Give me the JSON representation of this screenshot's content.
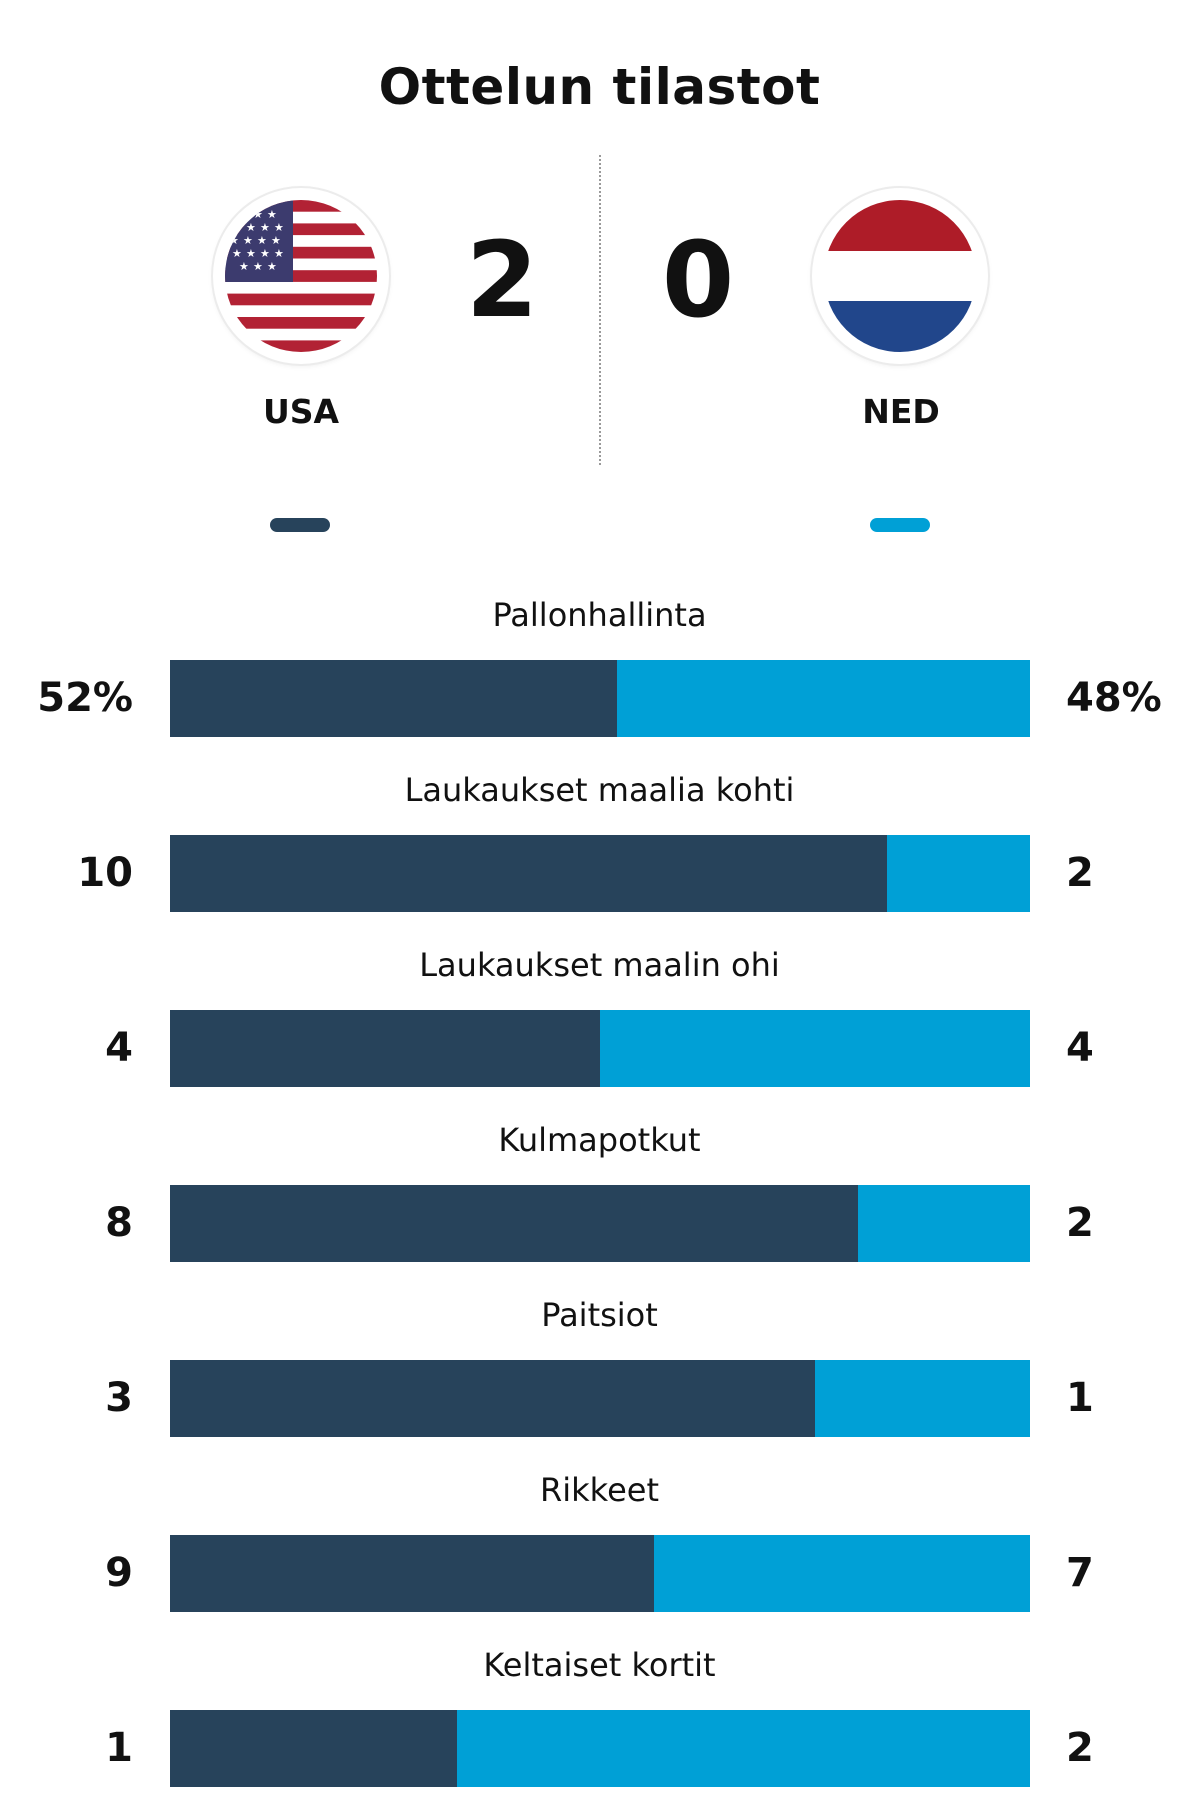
{
  "title": "Ottelun tilastot",
  "colors": {
    "home": "#27435b",
    "away": "#00a0d6"
  },
  "home": {
    "name": "USA",
    "score": "2",
    "flag": "us-flag-icon"
  },
  "away": {
    "name": "NED",
    "score": "0",
    "flag": "netherlands-flag-icon"
  },
  "chart_data": {
    "type": "bar",
    "orientation": "horizontal-stacked-share",
    "categories": [
      "Pallonhallinta",
      "Laukaukset maalia kohti",
      "Laukaukset maalin ohi",
      "Kulmapotkut",
      "Paitsiot",
      "Rikkeet",
      "Keltaiset kortit"
    ],
    "series": [
      {
        "name": "USA",
        "values": [
          52,
          10,
          4,
          8,
          3,
          9,
          1
        ]
      },
      {
        "name": "NED",
        "values": [
          48,
          2,
          4,
          2,
          1,
          7,
          2
        ]
      }
    ],
    "labels_home": [
      "52%",
      "10",
      "4",
      "8",
      "3",
      "9",
      "1"
    ],
    "labels_away": [
      "48%",
      "2",
      "4",
      "2",
      "1",
      "7",
      "2"
    ]
  }
}
